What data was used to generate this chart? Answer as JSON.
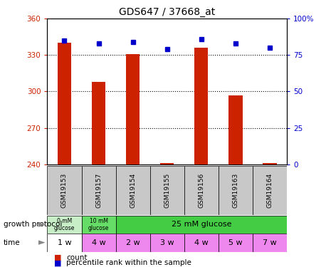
{
  "title": "GDS647 / 37668_at",
  "samples": [
    "GSM19153",
    "GSM19157",
    "GSM19154",
    "GSM19155",
    "GSM19156",
    "GSM19163",
    "GSM19164"
  ],
  "bar_values": [
    340,
    308,
    331,
    241,
    336,
    297,
    241
  ],
  "percentile_values": [
    85,
    83,
    84,
    79,
    86,
    83,
    80
  ],
  "ylim_left": [
    240,
    360
  ],
  "ylim_right": [
    0,
    100
  ],
  "yticks_left": [
    240,
    270,
    300,
    330,
    360
  ],
  "yticks_right": [
    0,
    25,
    50,
    75,
    100
  ],
  "ytick_right_labels": [
    "0",
    "25",
    "50",
    "75",
    "100%"
  ],
  "bar_color": "#cc2200",
  "dot_color": "#0000cc",
  "bar_bottom": 240,
  "time_labels": [
    "1 w",
    "4 w",
    "2 w",
    "3 w",
    "4 w",
    "5 w",
    "7 w"
  ],
  "time_colors": [
    "#ffffff",
    "#ee88ee",
    "#ee88ee",
    "#ee88ee",
    "#ee88ee",
    "#ee88ee",
    "#ee88ee"
  ],
  "sample_bg_color": "#c8c8c8",
  "growth_0mM_color": "#c8eec8",
  "growth_10mM_color": "#66dd66",
  "growth_25mM_color": "#44cc44",
  "legend_bar_label": "count",
  "legend_dot_label": "percentile rank within the sample",
  "xlabel_growth": "growth protocol",
  "xlabel_time": "time",
  "bar_width": 0.4
}
